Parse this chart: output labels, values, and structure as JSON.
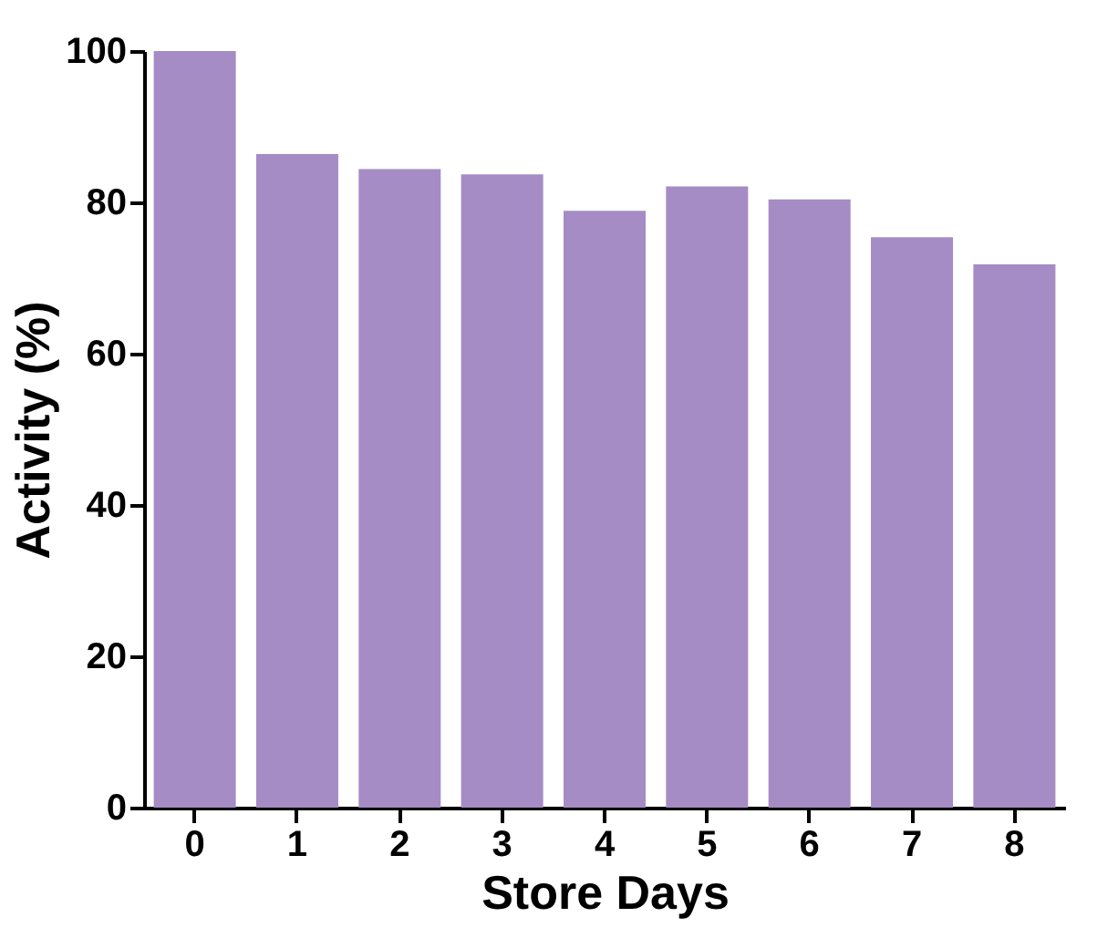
{
  "chart_data": {
    "type": "bar",
    "xlabel": "Store Days",
    "ylabel": "Activity (%)",
    "categories": [
      "0",
      "1",
      "2",
      "3",
      "4",
      "5",
      "6",
      "7",
      "8"
    ],
    "values": [
      100,
      86.4,
      84.4,
      83.7,
      78.9,
      82.1,
      80.4,
      75.4,
      71.8
    ],
    "color": "#a58cc4",
    "ylim": [
      0,
      100
    ],
    "yticks": [
      0,
      20,
      40,
      60,
      80,
      100
    ],
    "grid": false
  }
}
